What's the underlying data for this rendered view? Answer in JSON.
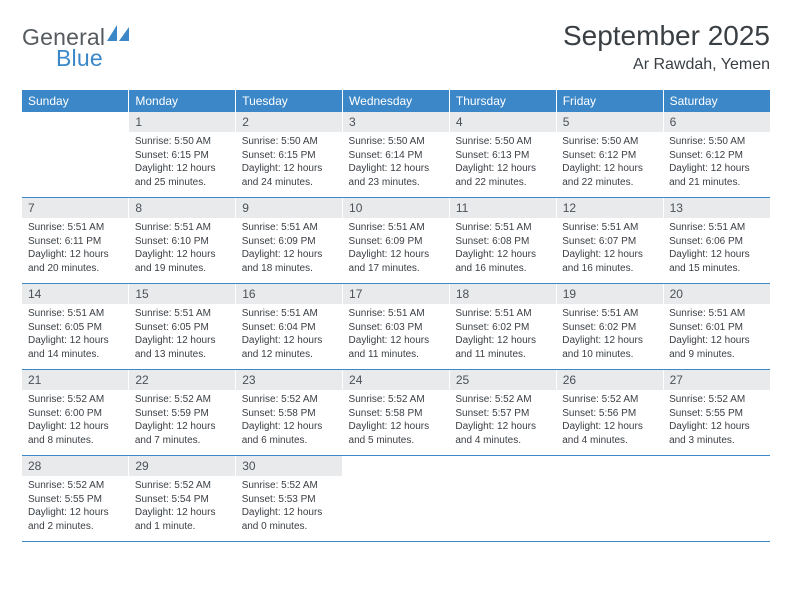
{
  "logo": {
    "general": "General",
    "blue": "Blue",
    "icon_color": "#3b87c8"
  },
  "title": "September 2025",
  "location": "Ar Rawdah, Yemen",
  "colors": {
    "header_bg": "#3b87c8",
    "header_text": "#ffffff",
    "daynum_bg": "#e9eaec",
    "daynum_text": "#4b5158",
    "body_text": "#3a3f44",
    "rule": "#3b87c8",
    "page_bg": "#ffffff"
  },
  "weekdays": [
    "Sunday",
    "Monday",
    "Tuesday",
    "Wednesday",
    "Thursday",
    "Friday",
    "Saturday"
  ],
  "weeks": [
    {
      "nums": [
        "",
        "1",
        "2",
        "3",
        "4",
        "5",
        "6"
      ],
      "cells": [
        null,
        {
          "sunrise": "Sunrise: 5:50 AM",
          "sunset": "Sunset: 6:15 PM",
          "d1": "Daylight: 12 hours",
          "d2": "and 25 minutes."
        },
        {
          "sunrise": "Sunrise: 5:50 AM",
          "sunset": "Sunset: 6:15 PM",
          "d1": "Daylight: 12 hours",
          "d2": "and 24 minutes."
        },
        {
          "sunrise": "Sunrise: 5:50 AM",
          "sunset": "Sunset: 6:14 PM",
          "d1": "Daylight: 12 hours",
          "d2": "and 23 minutes."
        },
        {
          "sunrise": "Sunrise: 5:50 AM",
          "sunset": "Sunset: 6:13 PM",
          "d1": "Daylight: 12 hours",
          "d2": "and 22 minutes."
        },
        {
          "sunrise": "Sunrise: 5:50 AM",
          "sunset": "Sunset: 6:12 PM",
          "d1": "Daylight: 12 hours",
          "d2": "and 22 minutes."
        },
        {
          "sunrise": "Sunrise: 5:50 AM",
          "sunset": "Sunset: 6:12 PM",
          "d1": "Daylight: 12 hours",
          "d2": "and 21 minutes."
        }
      ]
    },
    {
      "nums": [
        "7",
        "8",
        "9",
        "10",
        "11",
        "12",
        "13"
      ],
      "cells": [
        {
          "sunrise": "Sunrise: 5:51 AM",
          "sunset": "Sunset: 6:11 PM",
          "d1": "Daylight: 12 hours",
          "d2": "and 20 minutes."
        },
        {
          "sunrise": "Sunrise: 5:51 AM",
          "sunset": "Sunset: 6:10 PM",
          "d1": "Daylight: 12 hours",
          "d2": "and 19 minutes."
        },
        {
          "sunrise": "Sunrise: 5:51 AM",
          "sunset": "Sunset: 6:09 PM",
          "d1": "Daylight: 12 hours",
          "d2": "and 18 minutes."
        },
        {
          "sunrise": "Sunrise: 5:51 AM",
          "sunset": "Sunset: 6:09 PM",
          "d1": "Daylight: 12 hours",
          "d2": "and 17 minutes."
        },
        {
          "sunrise": "Sunrise: 5:51 AM",
          "sunset": "Sunset: 6:08 PM",
          "d1": "Daylight: 12 hours",
          "d2": "and 16 minutes."
        },
        {
          "sunrise": "Sunrise: 5:51 AM",
          "sunset": "Sunset: 6:07 PM",
          "d1": "Daylight: 12 hours",
          "d2": "and 16 minutes."
        },
        {
          "sunrise": "Sunrise: 5:51 AM",
          "sunset": "Sunset: 6:06 PM",
          "d1": "Daylight: 12 hours",
          "d2": "and 15 minutes."
        }
      ]
    },
    {
      "nums": [
        "14",
        "15",
        "16",
        "17",
        "18",
        "19",
        "20"
      ],
      "cells": [
        {
          "sunrise": "Sunrise: 5:51 AM",
          "sunset": "Sunset: 6:05 PM",
          "d1": "Daylight: 12 hours",
          "d2": "and 14 minutes."
        },
        {
          "sunrise": "Sunrise: 5:51 AM",
          "sunset": "Sunset: 6:05 PM",
          "d1": "Daylight: 12 hours",
          "d2": "and 13 minutes."
        },
        {
          "sunrise": "Sunrise: 5:51 AM",
          "sunset": "Sunset: 6:04 PM",
          "d1": "Daylight: 12 hours",
          "d2": "and 12 minutes."
        },
        {
          "sunrise": "Sunrise: 5:51 AM",
          "sunset": "Sunset: 6:03 PM",
          "d1": "Daylight: 12 hours",
          "d2": "and 11 minutes."
        },
        {
          "sunrise": "Sunrise: 5:51 AM",
          "sunset": "Sunset: 6:02 PM",
          "d1": "Daylight: 12 hours",
          "d2": "and 11 minutes."
        },
        {
          "sunrise": "Sunrise: 5:51 AM",
          "sunset": "Sunset: 6:02 PM",
          "d1": "Daylight: 12 hours",
          "d2": "and 10 minutes."
        },
        {
          "sunrise": "Sunrise: 5:51 AM",
          "sunset": "Sunset: 6:01 PM",
          "d1": "Daylight: 12 hours",
          "d2": "and 9 minutes."
        }
      ]
    },
    {
      "nums": [
        "21",
        "22",
        "23",
        "24",
        "25",
        "26",
        "27"
      ],
      "cells": [
        {
          "sunrise": "Sunrise: 5:52 AM",
          "sunset": "Sunset: 6:00 PM",
          "d1": "Daylight: 12 hours",
          "d2": "and 8 minutes."
        },
        {
          "sunrise": "Sunrise: 5:52 AM",
          "sunset": "Sunset: 5:59 PM",
          "d1": "Daylight: 12 hours",
          "d2": "and 7 minutes."
        },
        {
          "sunrise": "Sunrise: 5:52 AM",
          "sunset": "Sunset: 5:58 PM",
          "d1": "Daylight: 12 hours",
          "d2": "and 6 minutes."
        },
        {
          "sunrise": "Sunrise: 5:52 AM",
          "sunset": "Sunset: 5:58 PM",
          "d1": "Daylight: 12 hours",
          "d2": "and 5 minutes."
        },
        {
          "sunrise": "Sunrise: 5:52 AM",
          "sunset": "Sunset: 5:57 PM",
          "d1": "Daylight: 12 hours",
          "d2": "and 4 minutes."
        },
        {
          "sunrise": "Sunrise: 5:52 AM",
          "sunset": "Sunset: 5:56 PM",
          "d1": "Daylight: 12 hours",
          "d2": "and 4 minutes."
        },
        {
          "sunrise": "Sunrise: 5:52 AM",
          "sunset": "Sunset: 5:55 PM",
          "d1": "Daylight: 12 hours",
          "d2": "and 3 minutes."
        }
      ]
    },
    {
      "nums": [
        "28",
        "29",
        "30",
        "",
        "",
        "",
        ""
      ],
      "cells": [
        {
          "sunrise": "Sunrise: 5:52 AM",
          "sunset": "Sunset: 5:55 PM",
          "d1": "Daylight: 12 hours",
          "d2": "and 2 minutes."
        },
        {
          "sunrise": "Sunrise: 5:52 AM",
          "sunset": "Sunset: 5:54 PM",
          "d1": "Daylight: 12 hours",
          "d2": "and 1 minute."
        },
        {
          "sunrise": "Sunrise: 5:52 AM",
          "sunset": "Sunset: 5:53 PM",
          "d1": "Daylight: 12 hours",
          "d2": "and 0 minutes."
        },
        null,
        null,
        null,
        null
      ]
    }
  ]
}
